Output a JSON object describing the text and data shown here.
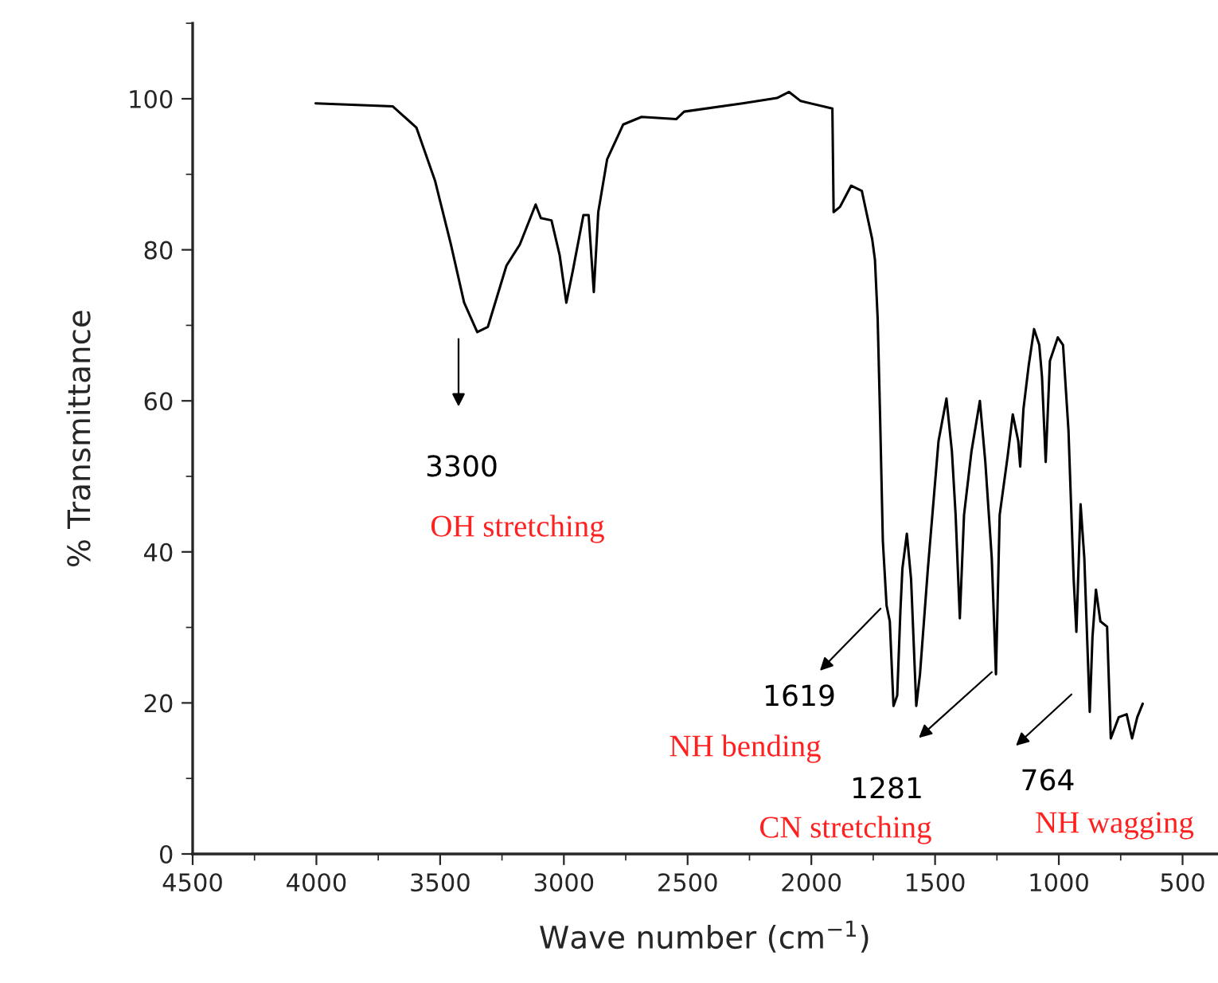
{
  "chart_data": {
    "type": "line",
    "xlabel": "Wave number (cm$^{−1}$)",
    "ylabel": "% Transmittance",
    "xlim": [
      4500,
      360
    ],
    "ylim": [
      0,
      110
    ],
    "xticks": [
      4500,
      4000,
      3500,
      3000,
      2500,
      2000,
      1500,
      1000,
      500
    ],
    "yticks": [
      0,
      20,
      40,
      60,
      80,
      100
    ],
    "grid": false,
    "legend": false,
    "marker": "none",
    "line_style": "solid",
    "series": [
      {
        "color": "#000000",
        "x": [
          4003,
          3692,
          3596,
          3521,
          3457,
          3403,
          3350,
          3307,
          3232,
          3178,
          3114,
          3093,
          3050,
          3017,
          2990,
          2964,
          2921,
          2900,
          2879,
          2861,
          2825,
          2760,
          2686,
          2546,
          2514,
          2278,
          2139,
          2090,
          2043,
          1915,
          1910,
          1884,
          1839,
          1796,
          1754,
          1743,
          1732,
          1722,
          1711,
          1696,
          1683,
          1668,
          1653,
          1640,
          1632,
          1614,
          1597,
          1576,
          1561,
          1529,
          1486,
          1454,
          1432,
          1417,
          1400,
          1383,
          1353,
          1319,
          1297,
          1271,
          1254,
          1239,
          1207,
          1186,
          1164,
          1156,
          1143,
          1122,
          1100,
          1079,
          1068,
          1053,
          1036,
          1004,
          983,
          961,
          940,
          929,
          912,
          897,
          875,
          864,
          850,
          832,
          805,
          790,
          758,
          726,
          704,
          683,
          661
        ],
        "values": [
          99.4,
          99.0,
          96.2,
          89.2,
          80.8,
          73.0,
          69.1,
          69.8,
          77.9,
          80.7,
          86.0,
          84.2,
          83.9,
          79.3,
          73.0,
          77.2,
          84.6,
          84.6,
          74.4,
          85.0,
          92.0,
          96.6,
          97.6,
          97.3,
          98.3,
          99.4,
          100.1,
          100.9,
          99.7,
          98.7,
          85.0,
          85.7,
          88.5,
          87.8,
          81.4,
          78.7,
          70.9,
          57.6,
          41.4,
          32.9,
          30.8,
          19.6,
          21.0,
          32.3,
          37.8,
          42.4,
          36.4,
          19.6,
          23.8,
          37.8,
          54.7,
          60.3,
          53.3,
          44.9,
          31.2,
          44.9,
          53.3,
          60.0,
          51.9,
          39.2,
          23.8,
          44.9,
          52.6,
          58.2,
          54.7,
          51.3,
          58.9,
          64.6,
          69.5,
          67.4,
          63.2,
          51.9,
          65.3,
          68.4,
          67.4,
          56.1,
          36.4,
          29.4,
          46.3,
          39.2,
          18.8,
          28.7,
          35.0,
          30.8,
          30.1,
          15.3,
          18.1,
          18.5,
          15.3,
          18.1,
          19.9
        ]
      }
    ],
    "annotations": [
      "3300",
      "OH stretching",
      "1619",
      "NH bending",
      "1281",
      "CN stretching",
      "764",
      "NH wagging"
    ]
  }
}
